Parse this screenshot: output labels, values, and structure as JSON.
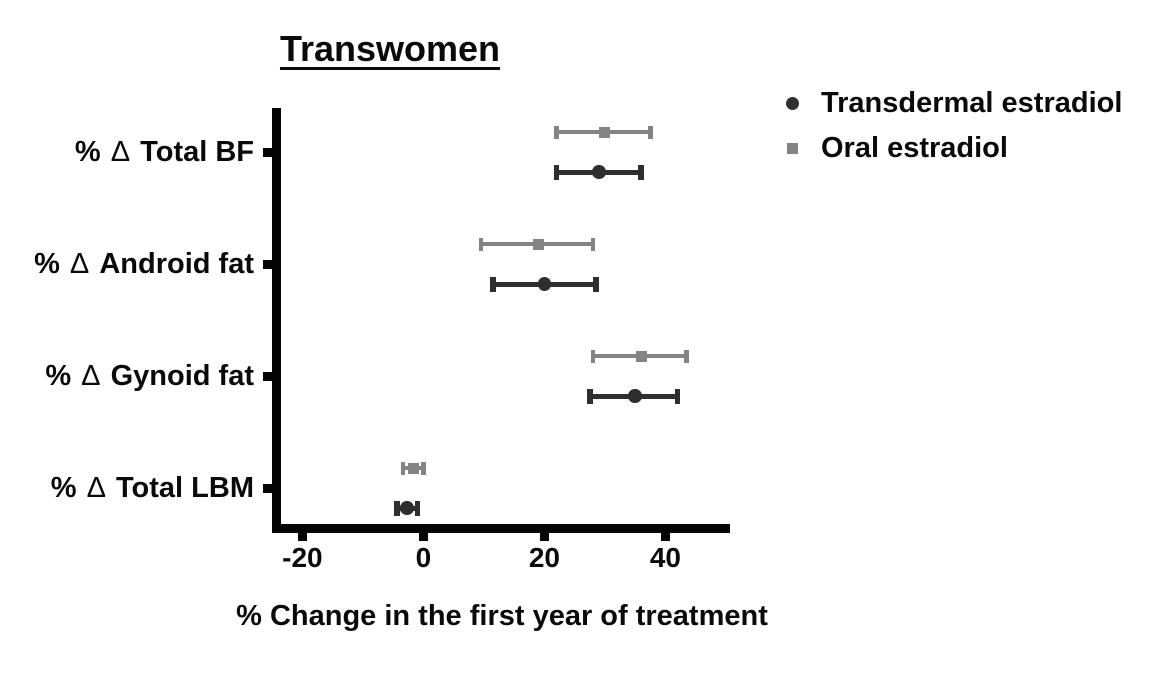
{
  "figure": {
    "title": "Transwomen",
    "x_axis_label": "% Change in the first year of treatment"
  },
  "legend": {
    "items": [
      {
        "label": "Transdermal estradiol",
        "marker": "circle-icon",
        "color": "#303030"
      },
      {
        "label": "Oral estradiol",
        "marker": "square-icon",
        "color": "#848484"
      }
    ]
  },
  "chart_data": {
    "type": "scatter",
    "subtype": "horizontal-point-estimates-with-error-bars",
    "title": "Transwomen",
    "xlabel": "% Change in the first year of treatment",
    "xlim": [
      -25,
      50.5
    ],
    "x_ticks": [
      -20,
      0,
      20,
      40
    ],
    "grid": false,
    "legend_position": "top-right-outside",
    "categories": [
      "% Δ Total BF",
      "% Δ Android fat",
      "% Δ Gynoid fat",
      "% Δ Total LBM"
    ],
    "series": [
      {
        "name": "Oral estradiol",
        "marker": "square",
        "color": "#848484",
        "pair_position": "top",
        "values": [
          {
            "category": "% Δ Total BF",
            "mean": 30,
            "lo": 22,
            "hi": 37.5
          },
          {
            "category": "% Δ Android fat",
            "mean": 19,
            "lo": 9.5,
            "hi": 28
          },
          {
            "category": "% Δ Gynoid fat",
            "mean": 36,
            "lo": 28,
            "hi": 43.5
          },
          {
            "category": "% Δ Total LBM",
            "mean": -1.7,
            "lo": -3.4,
            "hi": 0
          }
        ]
      },
      {
        "name": "Transdermal estradiol",
        "marker": "circle",
        "color": "#2e2e2e",
        "pair_position": "bottom",
        "values": [
          {
            "category": "% Δ Total BF",
            "mean": 29,
            "lo": 22,
            "hi": 36
          },
          {
            "category": "% Δ Android fat",
            "mean": 20,
            "lo": 11.5,
            "hi": 28.5
          },
          {
            "category": "% Δ Gynoid fat",
            "mean": 35,
            "lo": 27.5,
            "hi": 42
          },
          {
            "category": "% Δ Total LBM",
            "mean": -2.7,
            "lo": -4.4,
            "hi": -1
          }
        ]
      }
    ]
  }
}
